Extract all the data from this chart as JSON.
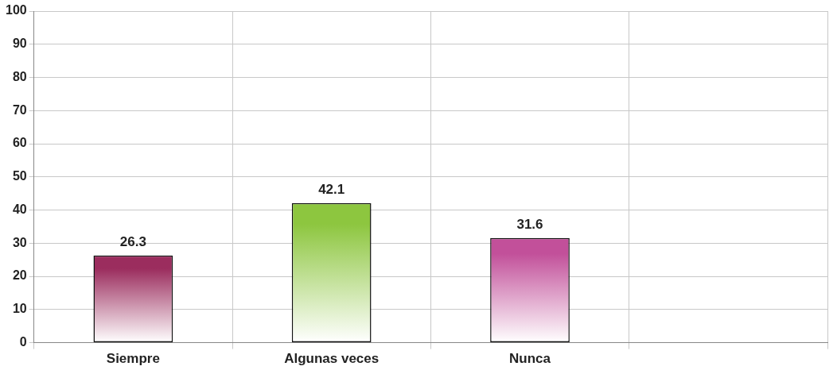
{
  "chart_data": {
    "type": "bar",
    "categories": [
      "Siempre",
      "Algunas veces",
      "Nunca",
      null
    ],
    "values": [
      26.3,
      42.1,
      31.6,
      null
    ],
    "colors": [
      "#9b2d5e",
      "#8dc63f",
      "#c2509a",
      "#000000"
    ],
    "ylim": [
      0,
      100
    ],
    "yticks": [
      0,
      10,
      20,
      30,
      40,
      50,
      60,
      70,
      80,
      90,
      100
    ],
    "grid": true,
    "legend": false,
    "data_labels": true
  }
}
